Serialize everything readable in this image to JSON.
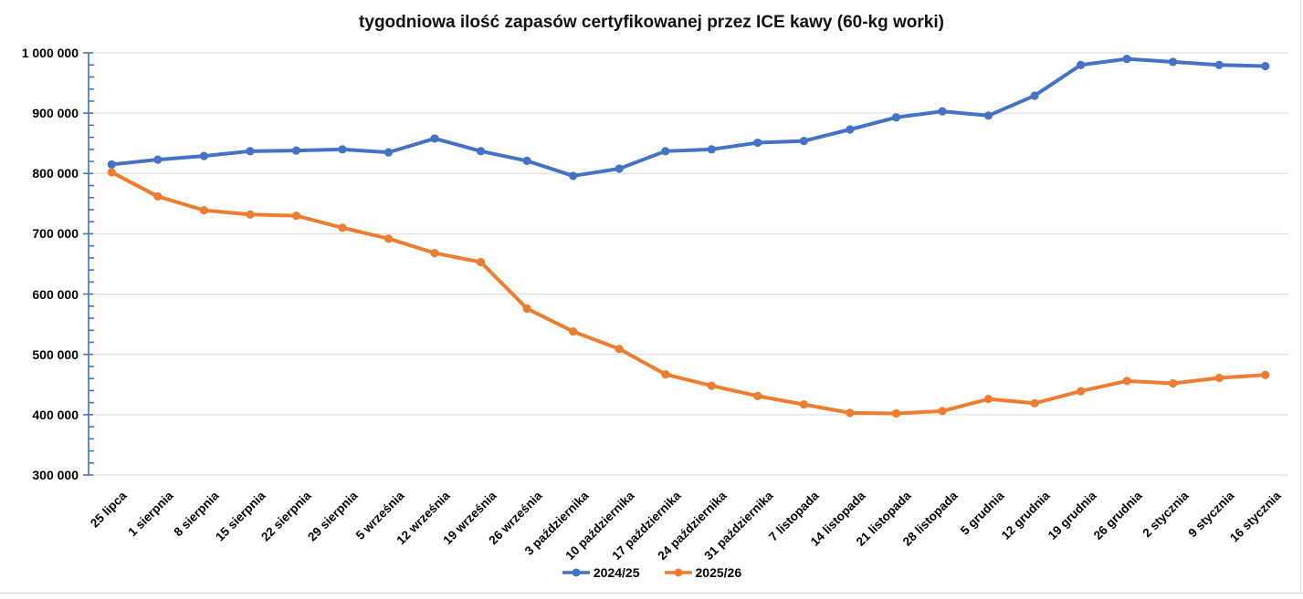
{
  "chart_data": {
    "type": "line",
    "title": "tygodniowa ilość zapasów certyfikowanej przez ICE kawy (60-kg worki)",
    "categories": [
      "25 lipca",
      "1 sierpnia",
      "8 sierpnia",
      "15 sierpnia",
      "22 sierpnia",
      "29 sierpnia",
      "5 września",
      "12 września",
      "19 września",
      "26 września",
      "3 października",
      "10 października",
      "17 października",
      "24 października",
      "31 października",
      "7 listopada",
      "14 listopada",
      "21 listopada",
      "28 listopada",
      "5 grudnia",
      "12 grudnia",
      "19 grudnia",
      "26 grudnia",
      "2 stycznia",
      "9 stycznia",
      "16 stycznia"
    ],
    "series": [
      {
        "name": "2024/25",
        "color": "#4472C4",
        "values": [
          815000,
          823000,
          829000,
          837000,
          838000,
          840000,
          835000,
          858000,
          837000,
          821000,
          796000,
          808000,
          837000,
          840000,
          851000,
          854000,
          873000,
          893000,
          903000,
          896000,
          929000,
          980000,
          990000,
          985000,
          980000,
          978000
        ]
      },
      {
        "name": "2025/26",
        "color": "#ED7D31",
        "values": [
          802000,
          762000,
          739000,
          732000,
          730000,
          710000,
          692000,
          668000,
          653000,
          576000,
          538000,
          509000,
          467000,
          448000,
          431000,
          417000,
          403000,
          402000,
          406000,
          426000,
          419000,
          439000,
          456000,
          452000,
          461000,
          466000
        ]
      }
    ],
    "ylim": [
      300000,
      1000000
    ],
    "y_major_step": 100000,
    "y_minor_step": 20000,
    "y_ticks": [
      {
        "value": 1000000,
        "label": "1 000 000"
      },
      {
        "value": 900000,
        "label": "900 000"
      },
      {
        "value": 800000,
        "label": "800 000"
      },
      {
        "value": 700000,
        "label": "700 000"
      },
      {
        "value": 600000,
        "label": "600 000"
      },
      {
        "value": 500000,
        "label": "500 000"
      },
      {
        "value": 400000,
        "label": "400 000"
      },
      {
        "value": 300000,
        "label": "300 000"
      }
    ],
    "grid": "horizontal-major",
    "legend_position": "bottom-center",
    "colors": {
      "gridline": "#D9D9D9",
      "y_axis": "#4472C4",
      "text": "#000000",
      "background": "#FFFFFF"
    }
  }
}
